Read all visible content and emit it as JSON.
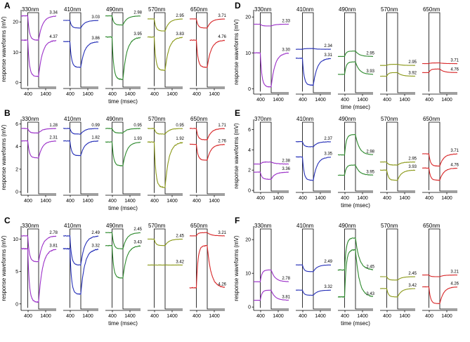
{
  "chart_data": [
    {
      "panel": "A",
      "type": "line",
      "ylabel": "response waveforms (mV)",
      "xlabel": "time (msec)",
      "ylim": [
        -2,
        24
      ],
      "yticks": [
        0,
        10,
        20
      ],
      "xticks": [
        400,
        1400
      ],
      "stimulus_ms": [
        380,
        1000
      ],
      "subpanels": [
        {
          "wavelength": "330nm",
          "series": [
            {
              "color": "#9b30c8",
              "label": "3.34",
              "baseline": 22,
              "level": 14
            },
            {
              "color": "#9b30c8",
              "label": "4.37",
              "baseline": 14,
              "level": 2
            }
          ]
        },
        {
          "wavelength": "410nm",
          "series": [
            {
              "color": "#2630b8",
              "label": "3.03",
              "baseline": 20.5,
              "level": 18
            },
            {
              "color": "#2630b8",
              "label": "3.86",
              "baseline": 13.5,
              "level": 5
            }
          ]
        },
        {
          "wavelength": "490nm",
          "series": [
            {
              "color": "#2e8a2e",
              "label": "2.98",
              "baseline": 22,
              "level": 19
            },
            {
              "color": "#2e8a2e",
              "label": "3.95",
              "baseline": 15,
              "level": 1
            }
          ]
        },
        {
          "wavelength": "570nm",
          "series": [
            {
              "color": "#8c9a1a",
              "label": "2.95",
              "baseline": 21,
              "level": 17
            },
            {
              "color": "#8c9a1a",
              "label": "3.83",
              "baseline": 15,
              "level": 4
            }
          ]
        },
        {
          "wavelength": "650nm",
          "series": [
            {
              "color": "#d8282a",
              "label": "3.71",
              "baseline": 21,
              "level": 18
            },
            {
              "color": "#d8282a",
              "label": "4.76",
              "baseline": 14,
              "level": 5
            }
          ]
        }
      ]
    },
    {
      "panel": "B",
      "type": "line",
      "ylabel": "response waveforms (mV)",
      "xlabel": "time (msec)",
      "ylim": [
        -0.3,
        6.4
      ],
      "yticks": [
        0,
        2,
        4,
        6
      ],
      "xticks": [
        400,
        1400
      ],
      "stimulus_ms": [
        380,
        1000
      ],
      "subpanels": [
        {
          "wavelength": "330nm",
          "series": [
            {
              "color": "#9b30c8",
              "label": "1.28",
              "baseline": 5.6,
              "level": 5.2
            },
            {
              "color": "#9b30c8",
              "label": "2.31",
              "baseline": 4.5,
              "level": 3.0
            }
          ]
        },
        {
          "wavelength": "410nm",
          "series": [
            {
              "color": "#2630b8",
              "label": "0.99",
              "baseline": 5.6,
              "level": 5.1
            },
            {
              "color": "#2630b8",
              "label": "1.82",
              "baseline": 4.5,
              "level": 3.2
            }
          ]
        },
        {
          "wavelength": "490nm",
          "series": [
            {
              "color": "#2e8a2e",
              "label": "0.95",
              "baseline": 5.6,
              "level": 5.2
            },
            {
              "color": "#2e8a2e",
              "label": "1.93",
              "baseline": 4.4,
              "level": 2.3
            }
          ]
        },
        {
          "wavelength": "570nm",
          "series": [
            {
              "color": "#8c9a1a",
              "label": "0.95",
              "baseline": 5.6,
              "level": 5.1
            },
            {
              "color": "#8c9a1a",
              "label": "1.92",
              "baseline": 4.4,
              "level": 0.4
            }
          ]
        },
        {
          "wavelength": "650nm",
          "series": [
            {
              "color": "#d8282a",
              "label": "1.71",
              "baseline": 5.6,
              "level": 4.6
            },
            {
              "color": "#d8282a",
              "label": "2.76",
              "baseline": 4.2,
              "level": 2.8
            }
          ]
        }
      ]
    },
    {
      "panel": "C",
      "type": "line",
      "ylabel": "response waveforms (mV)",
      "xlabel": "time (msec)",
      "ylim": [
        -1,
        12
      ],
      "yticks": [
        0,
        5,
        10
      ],
      "xticks": [
        400,
        1400
      ],
      "stimulus_ms": [
        380,
        1000
      ],
      "subpanels": [
        {
          "wavelength": "330nm",
          "series": [
            {
              "color": "#9b30c8",
              "label": "2.78",
              "baseline": 10.5,
              "level": 6.5
            },
            {
              "color": "#9b30c8",
              "label": "3.81",
              "baseline": 8.5,
              "level": 0.3
            }
          ]
        },
        {
          "wavelength": "410nm",
          "series": [
            {
              "color": "#2630b8",
              "label": "2.49",
              "baseline": 10.5,
              "level": 6
            },
            {
              "color": "#2630b8",
              "label": "3.32",
              "baseline": 8.5,
              "level": 1.5
            }
          ]
        },
        {
          "wavelength": "490nm",
          "series": [
            {
              "color": "#2e8a2e",
              "label": "2.45",
              "baseline": 11,
              "level": 8.5
            },
            {
              "color": "#2e8a2e",
              "label": "3.43",
              "baseline": 9,
              "level": 4
            }
          ]
        },
        {
          "wavelength": "570nm",
          "series": [
            {
              "color": "#8c9a1a",
              "label": "2.45",
              "baseline": 10,
              "level": 9
            },
            {
              "color": "#8c9a1a",
              "label": "3.42",
              "baseline": 6,
              "level": 6
            }
          ]
        },
        {
          "wavelength": "650nm",
          "series": [
            {
              "color": "#d8282a",
              "label": "3.21",
              "baseline": 10.5,
              "level": 11
            },
            {
              "color": "#d8282a",
              "label": "4.26",
              "baseline": 2.5,
              "level": 9
            }
          ]
        }
      ]
    },
    {
      "panel": "D",
      "type": "line",
      "ylabel": "response waveforms (mV)",
      "xlabel": "time (msec)",
      "ylim": [
        -1.5,
        22
      ],
      "yticks": [
        0,
        10,
        20
      ],
      "xticks": [
        400,
        1400
      ],
      "stimulus_ms": [
        380,
        1000
      ],
      "subpanels": [
        {
          "wavelength": "330nm",
          "series": [
            {
              "color": "#9b30c8",
              "label": "2.33",
              "baseline": 18,
              "level": 17.5
            },
            {
              "color": "#9b30c8",
              "label": "3.30",
              "baseline": 10,
              "level": 0.5
            }
          ]
        },
        {
          "wavelength": "410nm",
          "series": [
            {
              "color": "#2630b8",
              "label": "2.34",
              "baseline": 11,
              "level": 11.2
            },
            {
              "color": "#2630b8",
              "label": "3.31",
              "baseline": 8.5,
              "level": 1
            }
          ]
        },
        {
          "wavelength": "490nm",
          "series": [
            {
              "color": "#2e8a2e",
              "label": "2.95",
              "baseline": 9,
              "level": 10.5
            },
            {
              "color": "#2e8a2e",
              "label": "3.93",
              "baseline": 4,
              "level": 7.5
            }
          ]
        },
        {
          "wavelength": "570nm",
          "series": [
            {
              "color": "#8c9a1a",
              "label": "2.95",
              "baseline": 6.5,
              "level": 6.8
            },
            {
              "color": "#8c9a1a",
              "label": "3.92",
              "baseline": 3.5,
              "level": 4.5
            }
          ]
        },
        {
          "wavelength": "650nm",
          "series": [
            {
              "color": "#d8282a",
              "label": "3.71",
              "baseline": 7,
              "level": 7.2
            },
            {
              "color": "#d8282a",
              "label": "4.76",
              "baseline": 4.5,
              "level": 5.5
            }
          ]
        }
      ]
    },
    {
      "panel": "E",
      "type": "line",
      "ylabel": "response waveforms (mV)",
      "xlabel": "time (msec)",
      "ylim": [
        -0.2,
        7
      ],
      "yticks": [
        0,
        2,
        4,
        6
      ],
      "xticks": [
        400,
        1400
      ],
      "stimulus_ms": [
        380,
        1000
      ],
      "subpanels": [
        {
          "wavelength": "370nm",
          "series": [
            {
              "color": "#9b30c8",
              "label": "2.38",
              "baseline": 2.6,
              "level": 2.8
            },
            {
              "color": "#9b30c8",
              "label": "3.36",
              "baseline": 1.8,
              "level": 1.1
            }
          ]
        },
        {
          "wavelength": "410nm",
          "series": [
            {
              "color": "#2630b8",
              "label": "2.37",
              "baseline": 4.8,
              "level": 4.3
            },
            {
              "color": "#2630b8",
              "label": "3.35",
              "baseline": 3.3,
              "level": 1
            }
          ]
        },
        {
          "wavelength": "490nm",
          "series": [
            {
              "color": "#2e8a2e",
              "label": "2.98",
              "baseline": 3.5,
              "level": 5.5
            },
            {
              "color": "#2e8a2e",
              "label": "3.95",
              "baseline": 1.5,
              "level": 2.5
            }
          ]
        },
        {
          "wavelength": "570nm",
          "series": [
            {
              "color": "#8c9a1a",
              "label": "2.95",
              "baseline": 2.8,
              "level": 2.5
            },
            {
              "color": "#8c9a1a",
              "label": "3.93",
              "baseline": 2.0,
              "level": 1.0
            }
          ]
        },
        {
          "wavelength": "650nm",
          "series": [
            {
              "color": "#d8282a",
              "label": "3.71",
              "baseline": 3.6,
              "level": 2.4
            },
            {
              "color": "#d8282a",
              "label": "4.76",
              "baseline": 2.2,
              "level": 1.0
            }
          ]
        }
      ]
    },
    {
      "panel": "F",
      "type": "line",
      "ylabel": "response waveforms (mV)",
      "xlabel": "time (msec)",
      "ylim": [
        -1,
        24
      ],
      "yticks": [
        0,
        10,
        20
      ],
      "xticks": [
        400,
        1400
      ],
      "stimulus_ms": [
        380,
        1000
      ],
      "subpanels": [
        {
          "wavelength": "330nm",
          "series": [
            {
              "color": "#9b30c8",
              "label": "2.78",
              "baseline": 7.5,
              "level": 11
            },
            {
              "color": "#9b30c8",
              "label": "3.81",
              "baseline": 2,
              "level": 5
            }
          ]
        },
        {
          "wavelength": "410nm",
          "series": [
            {
              "color": "#2630b8",
              "label": "2.49",
              "baseline": 12.5,
              "level": 10.5
            },
            {
              "color": "#2630b8",
              "label": "3.32",
              "baseline": 5,
              "level": 3.5
            }
          ]
        },
        {
          "wavelength": "490nm",
          "series": [
            {
              "color": "#2e8a2e",
              "label": "2.45",
              "baseline": 11,
              "level": 20.5
            },
            {
              "color": "#2e8a2e",
              "label": "3.43",
              "baseline": 3,
              "level": 17
            }
          ]
        },
        {
          "wavelength": "570nm",
          "series": [
            {
              "color": "#8c9a1a",
              "label": "2.45",
              "baseline": 9,
              "level": 8
            },
            {
              "color": "#8c9a1a",
              "label": "3.42",
              "baseline": 5.5,
              "level": 3
            }
          ]
        },
        {
          "wavelength": "650nm",
          "series": [
            {
              "color": "#d8282a",
              "label": "3.21",
              "baseline": 9.5,
              "level": 9
            },
            {
              "color": "#d8282a",
              "label": "4.26",
              "baseline": 6,
              "level": 1
            }
          ]
        }
      ]
    }
  ]
}
